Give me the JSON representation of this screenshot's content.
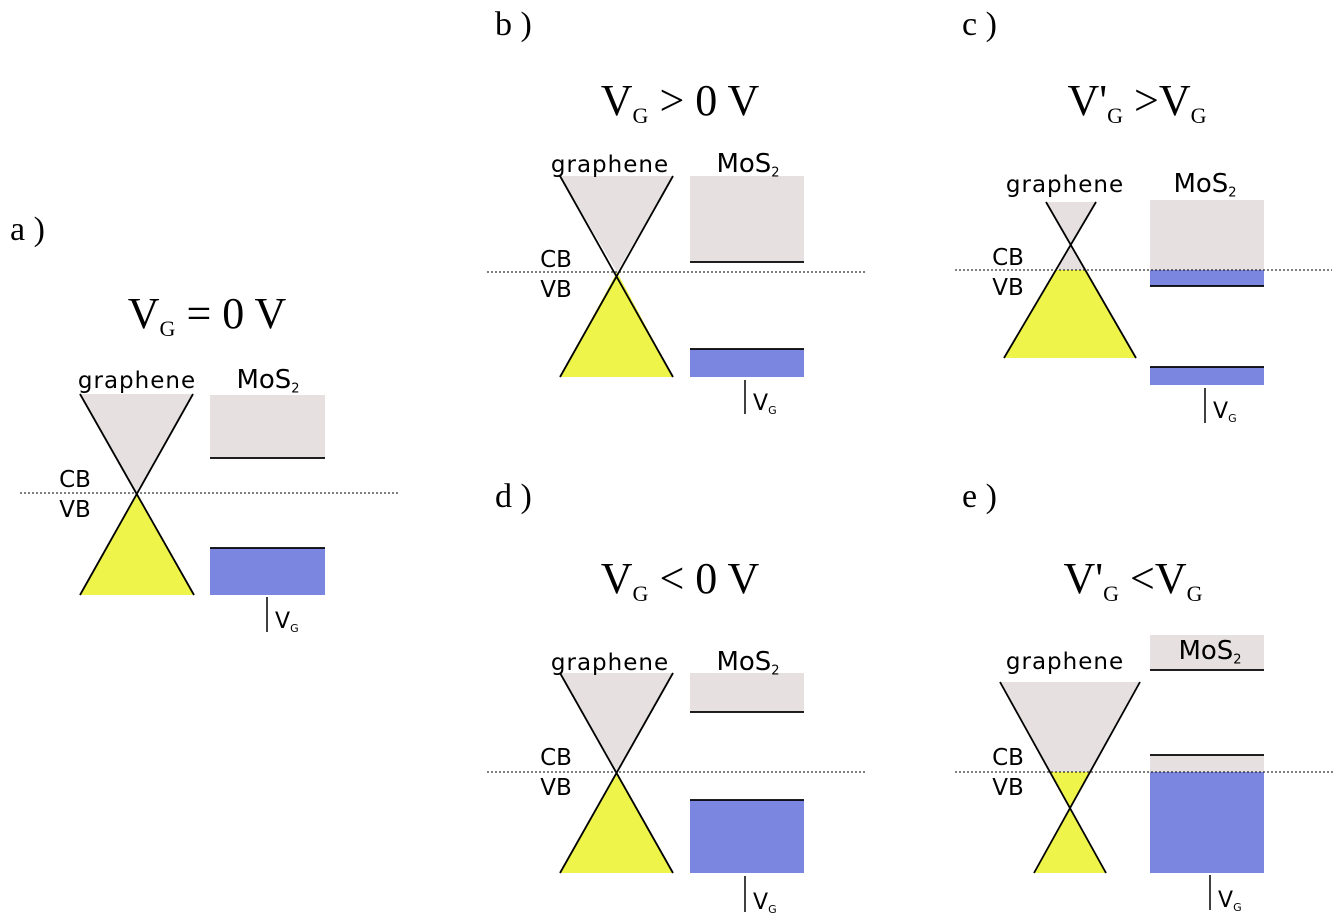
{
  "panels": [
    {
      "label": "a )",
      "condition": [
        {
          "text": "V"
        },
        {
          "sub": "G"
        },
        {
          "text": " = 0 V"
        }
      ],
      "graphene": "graphene",
      "mos2": [
        {
          "text": "MoS"
        },
        {
          "sub": "2"
        }
      ],
      "cb": "CB",
      "vb": "VB",
      "vg": [
        {
          "text": "V"
        },
        {
          "sub": "G"
        }
      ]
    },
    {
      "label": "b )",
      "condition": [
        {
          "text": "V"
        },
        {
          "sub": "G"
        },
        {
          "text": " > 0 V"
        }
      ],
      "graphene": "graphene",
      "mos2": [
        {
          "text": "MoS"
        },
        {
          "sub": "2"
        }
      ],
      "cb": "CB",
      "vb": "VB",
      "vg": [
        {
          "text": "V"
        },
        {
          "sub": "G"
        }
      ]
    },
    {
      "label": "c )",
      "condition": [
        {
          "text": "V'"
        },
        {
          "sub": "G"
        },
        {
          "text": " >V"
        },
        {
          "sub": "G"
        }
      ],
      "graphene": "graphene",
      "mos2": [
        {
          "text": "MoS"
        },
        {
          "sub": "2"
        }
      ],
      "cb": "CB",
      "vb": "VB",
      "vg": [
        {
          "text": "V"
        },
        {
          "sub": "G"
        }
      ]
    },
    {
      "label": "d )",
      "condition": [
        {
          "text": "V"
        },
        {
          "sub": "G"
        },
        {
          "text": " < 0 V"
        }
      ],
      "graphene": "graphene",
      "mos2": [
        {
          "text": "MoS"
        },
        {
          "sub": "2"
        }
      ],
      "cb": "CB",
      "vb": "VB",
      "vg": [
        {
          "text": "V"
        },
        {
          "sub": "G"
        }
      ]
    },
    {
      "label": "e )",
      "condition": [
        {
          "text": "V'"
        },
        {
          "sub": "G"
        },
        {
          "text": " <V"
        },
        {
          "sub": "G"
        }
      ],
      "graphene": "graphene",
      "mos2": [
        {
          "text": "MoS"
        },
        {
          "sub": "2"
        }
      ],
      "cb": "CB",
      "vb": "VB",
      "vg": [
        {
          "text": "V"
        },
        {
          "sub": "G"
        }
      ]
    }
  ]
}
